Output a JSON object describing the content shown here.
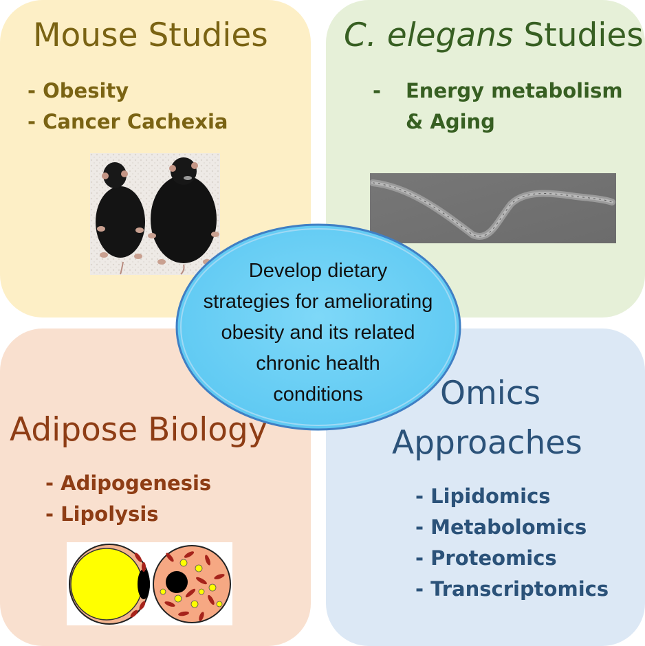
{
  "mouse": {
    "title": "Mouse Studies",
    "items": [
      "- Obesity",
      "- Cancer Cachexia"
    ],
    "image": "two-mice-photo"
  },
  "elegans": {
    "title_italic": "C. elegans",
    "title_rest": " Studies",
    "dash": "-",
    "line1": "Energy metabolism",
    "line2": "& Aging",
    "image": "c-elegans-worm-photo"
  },
  "adipose": {
    "title": "Adipose Biology",
    "items": [
      "- Adipogenesis",
      "- Lipolysis"
    ],
    "image": "adipocyte-cells-illustration"
  },
  "omics": {
    "title_line1": "Omics",
    "title_line2": "Approaches",
    "items": [
      "- Lipidomics",
      "- Metabolomics",
      "- Proteomics",
      "- Transcriptomics"
    ]
  },
  "center": {
    "lines": [
      "Develop dietary",
      "strategies for ameliorating",
      "obesity and its related",
      "chronic health",
      "conditions"
    ]
  },
  "colors": {
    "mouse_bg": "#fdefc6",
    "mouse_text": "#7a6313",
    "elegans_bg": "#e6f0d8",
    "elegans_text": "#375f22",
    "adipose_bg": "#f9e0cf",
    "adipose_text": "#8e3d15",
    "omics_bg": "#dce8f5",
    "omics_text": "#2b5279",
    "center_fill": "#6fd3f7"
  }
}
